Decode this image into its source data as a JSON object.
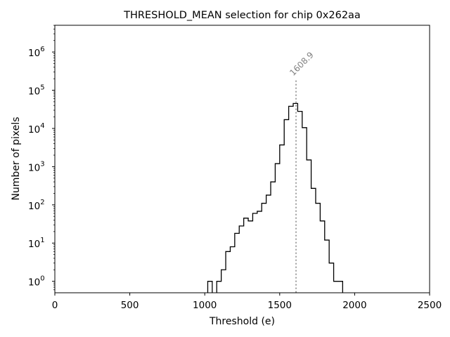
{
  "chart_data": {
    "type": "histogram",
    "title": "THRESHOLD_MEAN selection for chip 0x262aa",
    "xlabel": "Threshold (e)",
    "ylabel": "Number of pixels",
    "xlim": [
      0,
      2500
    ],
    "ylim_log10": [
      -0.3,
      6.7
    ],
    "yscale": "log",
    "xticks": [
      0,
      500,
      1000,
      1500,
      2000,
      2500
    ],
    "yticks": [
      {
        "exp": 0,
        "base": "10",
        "sup": "0"
      },
      {
        "exp": 1,
        "base": "10",
        "sup": "1"
      },
      {
        "exp": 2,
        "base": "10",
        "sup": "2"
      },
      {
        "exp": 3,
        "base": "10",
        "sup": "3"
      },
      {
        "exp": 4,
        "base": "10",
        "sup": "4"
      },
      {
        "exp": 5,
        "base": "10",
        "sup": "5"
      },
      {
        "exp": 6,
        "base": "10",
        "sup": "6"
      }
    ],
    "bin_width": 30,
    "bins": [
      {
        "x0": 1020,
        "count": 1
      },
      {
        "x0": 1050,
        "count": 0
      },
      {
        "x0": 1080,
        "count": 1
      },
      {
        "x0": 1110,
        "count": 2
      },
      {
        "x0": 1140,
        "count": 6
      },
      {
        "x0": 1170,
        "count": 8
      },
      {
        "x0": 1200,
        "count": 18
      },
      {
        "x0": 1230,
        "count": 28
      },
      {
        "x0": 1260,
        "count": 45
      },
      {
        "x0": 1290,
        "count": 38
      },
      {
        "x0": 1320,
        "count": 60
      },
      {
        "x0": 1350,
        "count": 68
      },
      {
        "x0": 1380,
        "count": 110
      },
      {
        "x0": 1410,
        "count": 180
      },
      {
        "x0": 1440,
        "count": 400
      },
      {
        "x0": 1470,
        "count": 1200
      },
      {
        "x0": 1500,
        "count": 3700
      },
      {
        "x0": 1530,
        "count": 17000
      },
      {
        "x0": 1560,
        "count": 38000
      },
      {
        "x0": 1590,
        "count": 45000
      },
      {
        "x0": 1620,
        "count": 28000
      },
      {
        "x0": 1650,
        "count": 10500
      },
      {
        "x0": 1680,
        "count": 1500
      },
      {
        "x0": 1710,
        "count": 270
      },
      {
        "x0": 1740,
        "count": 110
      },
      {
        "x0": 1770,
        "count": 38
      },
      {
        "x0": 1800,
        "count": 12
      },
      {
        "x0": 1830,
        "count": 3
      },
      {
        "x0": 1860,
        "count": 1
      },
      {
        "x0": 1890,
        "count": 1
      }
    ],
    "marker": {
      "x": 1608.9,
      "label": "1608.9",
      "y_top": 180000,
      "color": "#808080"
    }
  }
}
